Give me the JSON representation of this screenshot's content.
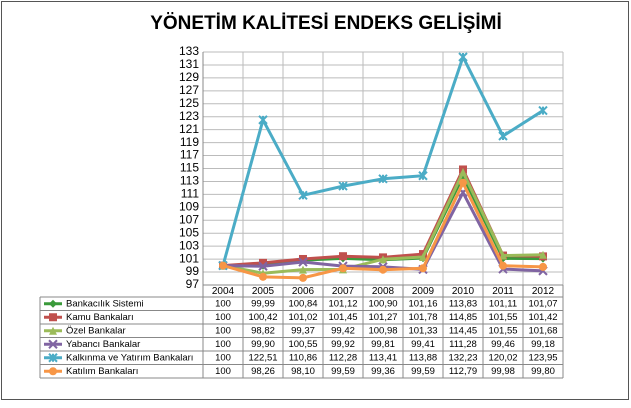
{
  "chart_data": {
    "type": "line",
    "title": "YÖNETİM KALİTESİ ENDEKS GELİŞİMİ",
    "categories": [
      "2004",
      "2005",
      "2006",
      "2007",
      "2008",
      "2009",
      "2010",
      "2011",
      "2012"
    ],
    "ylim": [
      97,
      133
    ],
    "yticks": [
      97,
      99,
      101,
      103,
      105,
      107,
      109,
      111,
      113,
      115,
      117,
      119,
      121,
      123,
      125,
      127,
      129,
      131,
      133
    ],
    "grid": true,
    "series": [
      {
        "name": "Bankacılık Sistemi",
        "color": "#3a9a3a",
        "marker": "diamond",
        "values": [
          100,
          99.99,
          100.84,
          101.12,
          100.9,
          101.16,
          113.83,
          101.11,
          101.07
        ],
        "value_labels": [
          "100",
          "99,99",
          "100,84",
          "101,12",
          "100,90",
          "101,16",
          "113,83",
          "101,11",
          "101,07"
        ]
      },
      {
        "name": "Kamu Bankaları",
        "color": "#c0504d",
        "marker": "square",
        "values": [
          100,
          100.42,
          101.02,
          101.45,
          101.27,
          101.78,
          114.85,
          101.55,
          101.42
        ],
        "value_labels": [
          "100",
          "100,42",
          "101,02",
          "101,45",
          "101,27",
          "101,78",
          "114,85",
          "101,55",
          "101,42"
        ]
      },
      {
        "name": "Özel Bankalar",
        "color": "#9bbb59",
        "marker": "triangle",
        "values": [
          100,
          98.82,
          99.37,
          99.42,
          100.98,
          101.33,
          114.45,
          101.55,
          101.68
        ],
        "value_labels": [
          "100",
          "98,82",
          "99,37",
          "99,42",
          "100,98",
          "101,33",
          "114,45",
          "101,55",
          "101,68"
        ]
      },
      {
        "name": "Yabancı Bankalar",
        "color": "#8064a2",
        "marker": "x",
        "values": [
          100,
          99.9,
          100.55,
          99.92,
          99.81,
          99.41,
          111.28,
          99.46,
          99.18
        ],
        "value_labels": [
          "100",
          "99,90",
          "100,55",
          "99,92",
          "99,81",
          "99,41",
          "111,28",
          "99,46",
          "99,18"
        ]
      },
      {
        "name": "Kalkınma ve Yatırım Bankaları",
        "color": "#4bacc6",
        "marker": "star",
        "values": [
          100,
          122.51,
          110.86,
          112.28,
          113.41,
          113.88,
          132.23,
          120.02,
          123.95
        ],
        "value_labels": [
          "100",
          "122,51",
          "110,86",
          "112,28",
          "113,41",
          "113,88",
          "132,23",
          "120,02",
          "123,95"
        ]
      },
      {
        "name": "Katılım Bankaları",
        "color": "#f79646",
        "marker": "circle",
        "values": [
          100,
          98.26,
          98.1,
          99.59,
          99.36,
          99.59,
          112.79,
          99.98,
          99.8
        ],
        "value_labels": [
          "100",
          "98,26",
          "98,10",
          "99,59",
          "99,36",
          "99,59",
          "112,79",
          "99,98",
          "99,80"
        ]
      }
    ]
  }
}
